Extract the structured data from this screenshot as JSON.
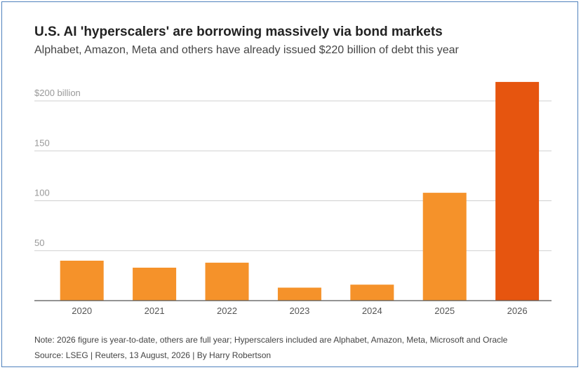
{
  "header": {
    "title": "U.S. AI 'hyperscalers' are borrowing massively via bond markets",
    "subtitle": "Alphabet, Amazon, Meta and others have already issued $220 billion of debt this year"
  },
  "footer": {
    "note": "Note: 2026 figure is year-to-date, others are full year; Hyperscalers included are Alphabet, Amazon, Meta, Microsoft and Oracle",
    "source": "Source: LSEG | Reuters, 13 August, 2026 | By Harry Robertson"
  },
  "chart_data": {
    "type": "bar",
    "categories": [
      "2020",
      "2021",
      "2022",
      "2023",
      "2024",
      "2025",
      "2026"
    ],
    "values": [
      40,
      33,
      38,
      13,
      16,
      108,
      219
    ],
    "ylim": [
      0,
      200
    ],
    "yticks": [
      {
        "value": 50,
        "label": "50"
      },
      {
        "value": 100,
        "label": "100"
      },
      {
        "value": 150,
        "label": "150"
      },
      {
        "value": 200,
        "label": "$200 billion"
      }
    ],
    "grid": true,
    "colors": {
      "bar": "#f5922a",
      "highlight_bar": "#e6550f",
      "gridline": "#cfcfcf",
      "axis": "#555555",
      "tick_label": "#999999",
      "category_label": "#555555"
    },
    "highlight_category": "2026"
  }
}
